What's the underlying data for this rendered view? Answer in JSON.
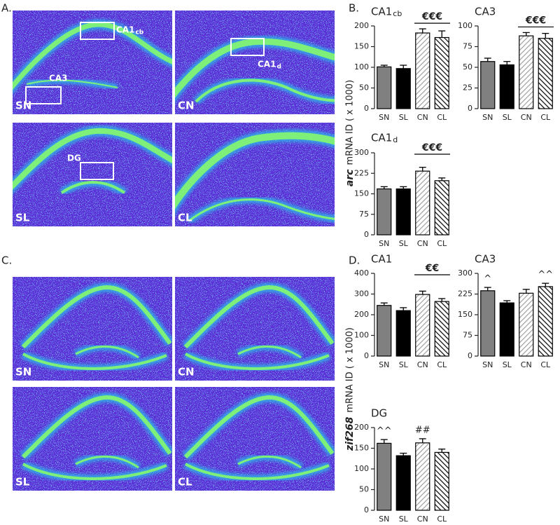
{
  "panels": {
    "a": {
      "label": "A.",
      "images": [
        {
          "label": "SN"
        },
        {
          "label": "CN"
        },
        {
          "label": "SL"
        },
        {
          "label": "CL"
        }
      ],
      "regions": [
        {
          "label": "CA1",
          "sub": "cb"
        },
        {
          "label": "CA3"
        },
        {
          "label": "CA1",
          "sub": "d"
        },
        {
          "label": "DG"
        }
      ]
    },
    "b": {
      "label": "B.",
      "y_label_gene": "arc",
      "y_label": "mRNA ID ( x 1000)"
    },
    "c": {
      "label": "C.",
      "images": [
        {
          "label": "SN"
        },
        {
          "label": "CN"
        },
        {
          "label": "SL"
        },
        {
          "label": "CL"
        }
      ]
    },
    "d": {
      "label": "D.",
      "y_label_gene": "zif268",
      "y_label": "mRNA ID ( x 1000)"
    }
  },
  "chart_data": [
    {
      "type": "bar",
      "title": "CA1",
      "title_sub": "cb",
      "categories": [
        "SN",
        "SL",
        "CN",
        "CL"
      ],
      "values": [
        101,
        97,
        183,
        172
      ],
      "errors": [
        4,
        8,
        10,
        16
      ],
      "fills": [
        "gray",
        "black",
        "light-hatch",
        "dark-hatch"
      ],
      "ylim": [
        0,
        200
      ],
      "yticks": [
        0,
        50,
        100,
        150,
        200
      ],
      "annotations": [
        {
          "text": "€€€",
          "over": [
            "CN",
            "CL"
          ]
        }
      ]
    },
    {
      "type": "bar",
      "title": "CA3",
      "categories": [
        "SN",
        "SL",
        "CN",
        "CL"
      ],
      "values": [
        57,
        53,
        88,
        85
      ],
      "errors": [
        4,
        4,
        4,
        6
      ],
      "fills": [
        "gray",
        "black",
        "light-hatch",
        "dark-hatch"
      ],
      "ylim": [
        0,
        100
      ],
      "yticks": [
        0,
        25,
        50,
        75,
        100
      ],
      "annotations": [
        {
          "text": "€€€",
          "over": [
            "CN",
            "CL"
          ]
        }
      ]
    },
    {
      "type": "bar",
      "title": "CA1",
      "title_sub": "d",
      "categories": [
        "SN",
        "SL",
        "CN",
        "CL"
      ],
      "values": [
        168,
        168,
        233,
        198
      ],
      "errors": [
        8,
        8,
        14,
        10
      ],
      "fills": [
        "gray",
        "black",
        "light-hatch",
        "dark-hatch"
      ],
      "ylim": [
        0,
        300
      ],
      "yticks": [
        0,
        75,
        150,
        225,
        300
      ],
      "annotations": [
        {
          "text": "€€€",
          "over": [
            "CN",
            "CL"
          ]
        }
      ]
    },
    {
      "type": "bar",
      "title": "CA1",
      "categories": [
        "SN",
        "SL",
        "CN",
        "CL"
      ],
      "values": [
        245,
        220,
        298,
        264
      ],
      "errors": [
        12,
        14,
        16,
        14
      ],
      "fills": [
        "gray",
        "black",
        "light-hatch",
        "dark-hatch"
      ],
      "ylim": [
        0,
        400
      ],
      "yticks": [
        0,
        100,
        200,
        300,
        400
      ],
      "annotations": [
        {
          "text": "€€",
          "over": [
            "CN",
            "CL"
          ]
        }
      ]
    },
    {
      "type": "bar",
      "title": "CA3",
      "categories": [
        "SN",
        "SL",
        "CN",
        "CL"
      ],
      "values": [
        237,
        193,
        228,
        252
      ],
      "errors": [
        12,
        8,
        14,
        12
      ],
      "fills": [
        "gray",
        "black",
        "light-hatch",
        "dark-hatch"
      ],
      "ylim": [
        0,
        300
      ],
      "yticks": [
        0,
        75,
        150,
        225,
        300
      ],
      "annotations": [
        {
          "text": "^",
          "over": [
            "SN"
          ]
        },
        {
          "text": "^^",
          "over": [
            "CL"
          ]
        }
      ]
    },
    {
      "type": "bar",
      "title": "DG",
      "categories": [
        "SN",
        "SL",
        "CN",
        "CL"
      ],
      "values": [
        162,
        132,
        163,
        140
      ],
      "errors": [
        9,
        6,
        10,
        8
      ],
      "fills": [
        "gray",
        "black",
        "light-hatch",
        "dark-hatch"
      ],
      "ylim": [
        0,
        200
      ],
      "yticks": [
        0,
        50,
        100,
        150,
        200
      ],
      "annotations": [
        {
          "text": "^^",
          "over": [
            "SN"
          ]
        },
        {
          "text": "##",
          "over": [
            "CN"
          ]
        }
      ]
    }
  ]
}
